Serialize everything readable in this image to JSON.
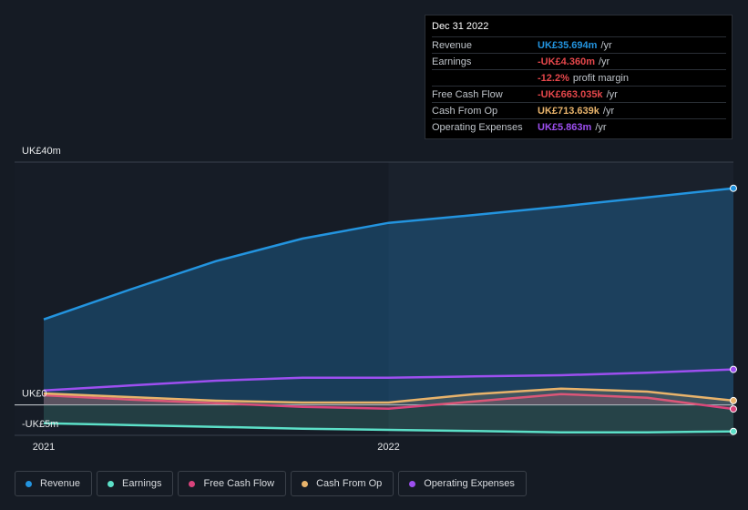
{
  "chart_data": {
    "type": "line",
    "x": [
      2021,
      2021.25,
      2021.5,
      2021.75,
      2022,
      2022.25,
      2022.5,
      2022.75,
      2023
    ],
    "xlim": [
      2021,
      2023
    ],
    "xticks": [
      2021,
      2022
    ],
    "ylim": [
      -5,
      40
    ],
    "yticks": [
      {
        "value": 40,
        "label": "UK£40m"
      },
      {
        "value": 0,
        "label": "UK£0"
      },
      {
        "value": -5,
        "label": "-UK£5m"
      }
    ],
    "highlight_from": 2022,
    "series": [
      {
        "name": "Revenue",
        "color": "#2394df",
        "area": true,
        "values": [
          14.1,
          19.0,
          23.7,
          27.4,
          30.0,
          31.3,
          32.7,
          34.2,
          35.694
        ]
      },
      {
        "name": "Earnings",
        "color": "#5ce0c8",
        "area": true,
        "values": [
          -3.0,
          -3.3,
          -3.6,
          -3.9,
          -4.1,
          -4.3,
          -4.5,
          -4.5,
          -4.36
        ]
      },
      {
        "name": "Free Cash Flow",
        "color": "#d9437c",
        "area": true,
        "values": [
          1.6,
          0.9,
          0.3,
          -0.3,
          -0.6,
          0.6,
          1.8,
          1.2,
          -0.663
        ]
      },
      {
        "name": "Cash From Op",
        "color": "#e8b36b",
        "area": true,
        "values": [
          1.9,
          1.3,
          0.7,
          0.4,
          0.4,
          1.8,
          2.7,
          2.2,
          0.714
        ]
      },
      {
        "name": "Operating Expenses",
        "color": "#9d4ff0",
        "area": false,
        "values": [
          2.4,
          3.2,
          4.0,
          4.5,
          4.5,
          4.7,
          4.9,
          5.3,
          5.863
        ]
      }
    ],
    "tooltip": {
      "title": "Dec 31 2022",
      "rows": [
        {
          "label": "Revenue",
          "value": "UK£35.694m",
          "unit": "/yr",
          "color": "#2394df"
        },
        {
          "label": "Earnings",
          "value": "-UK£4.360m",
          "unit": "/yr",
          "color": "#e5474b"
        },
        {
          "label": "",
          "value": "-12.2%",
          "unit": "profit margin",
          "color": "#e5474b"
        },
        {
          "label": "Free Cash Flow",
          "value": "-UK£663.035k",
          "unit": "/yr",
          "color": "#e5474b"
        },
        {
          "label": "Cash From Op",
          "value": "UK£713.639k",
          "unit": "/yr",
          "color": "#e8b36b"
        },
        {
          "label": "Operating Expenses",
          "value": "UK£5.863m",
          "unit": "/yr",
          "color": "#9d4ff0"
        }
      ]
    }
  }
}
